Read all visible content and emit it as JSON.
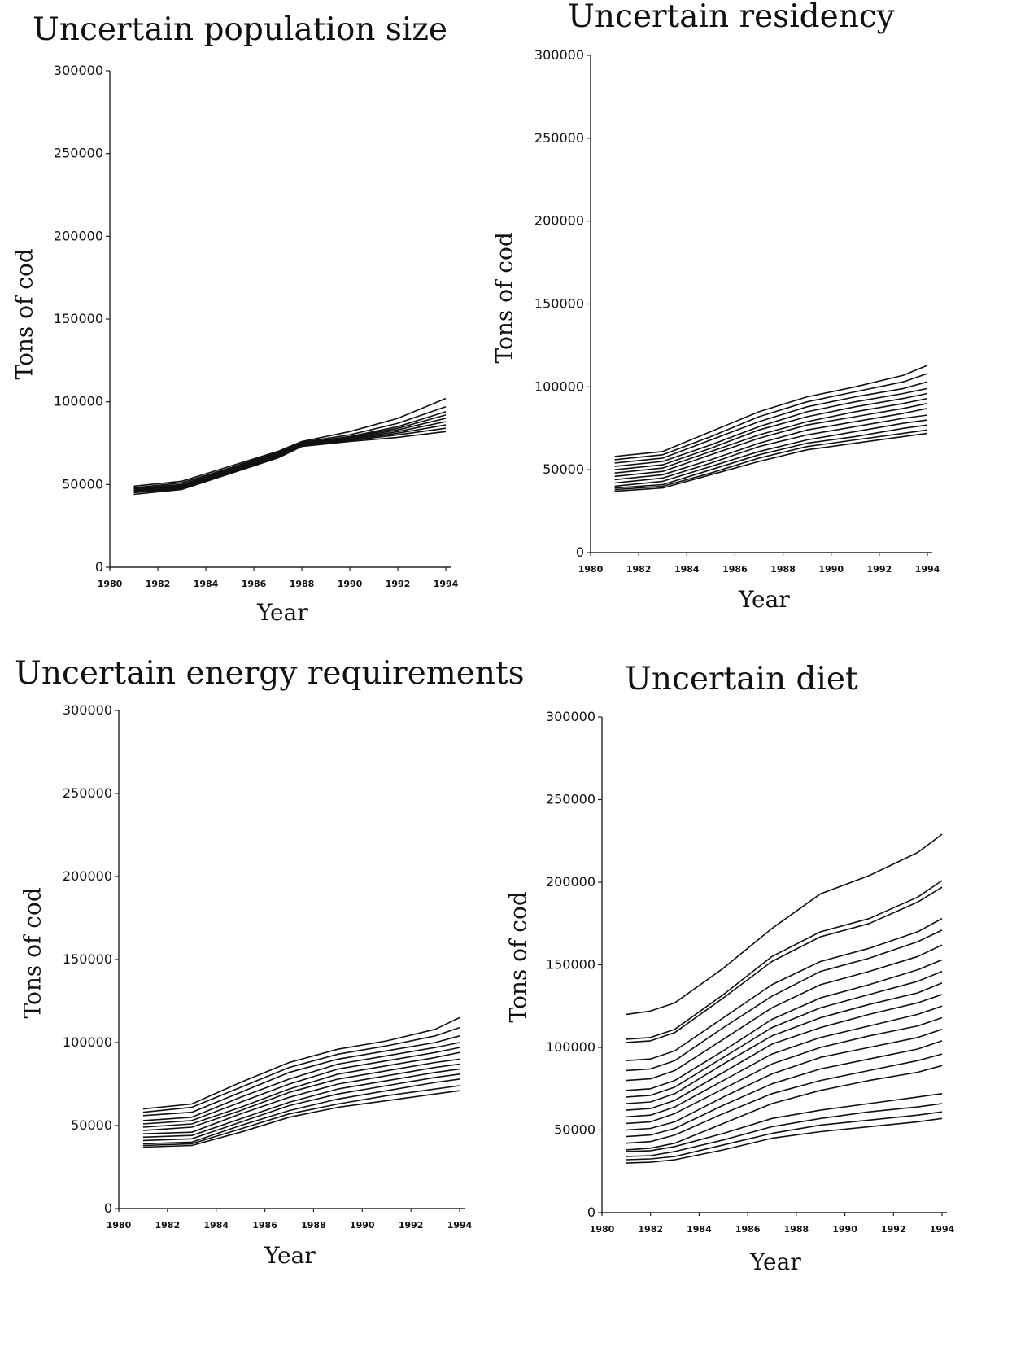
{
  "chart_data": [
    {
      "type": "line",
      "title": "Uncertain population size",
      "xlabel": "Year",
      "ylabel": "Tons of cod",
      "xlim": [
        1980,
        1994
      ],
      "ylim": [
        0,
        300000
      ],
      "x_ticks": [
        "1980",
        "1982",
        "1984",
        "1986",
        "1988",
        "1990",
        "1992",
        "1994"
      ],
      "y_ticks": [
        "0",
        "50000",
        "100000",
        "150000",
        "200000",
        "250000",
        "300000"
      ],
      "grid": false,
      "legend": "none",
      "x": [
        1981,
        1983,
        1985,
        1987,
        1988,
        1990,
        1992,
        1994
      ],
      "series": [
        {
          "values": [
            49000,
            52000,
            61000,
            70000,
            76000,
            82000,
            90000,
            102000
          ]
        },
        {
          "values": [
            48000,
            51000,
            60000,
            69500,
            75500,
            80000,
            87000,
            97000
          ]
        },
        {
          "values": [
            47500,
            50000,
            59500,
            69000,
            75000,
            79000,
            85000,
            94000
          ]
        },
        {
          "values": [
            47000,
            49500,
            59000,
            68500,
            74500,
            78500,
            84000,
            92000
          ]
        },
        {
          "values": [
            46500,
            49000,
            58500,
            68000,
            74000,
            78000,
            83000,
            90000
          ]
        },
        {
          "values": [
            46000,
            48500,
            58000,
            67500,
            74000,
            77500,
            82000,
            88000
          ]
        },
        {
          "values": [
            45500,
            48000,
            57500,
            67000,
            73500,
            77000,
            81000,
            86000
          ]
        },
        {
          "values": [
            45000,
            47500,
            57000,
            66500,
            73500,
            76500,
            80000,
            84000
          ]
        },
        {
          "values": [
            44000,
            47000,
            56500,
            66000,
            73000,
            76000,
            78500,
            82000
          ]
        }
      ]
    },
    {
      "type": "line",
      "title": "Uncertain residency",
      "xlabel": "Year",
      "ylabel": "Tons of cod",
      "xlim": [
        1980,
        1994
      ],
      "ylim": [
        0,
        300000
      ],
      "x_ticks": [
        "1980",
        "1982",
        "1984",
        "1986",
        "1988",
        "1990",
        "1992",
        "1994"
      ],
      "y_ticks": [
        "0",
        "50000",
        "100000",
        "150000",
        "200000",
        "250000",
        "300000"
      ],
      "grid": false,
      "legend": "none",
      "x": [
        1981,
        1983,
        1985,
        1987,
        1989,
        1991,
        1993,
        1994
      ],
      "series": [
        {
          "values": [
            58000,
            61000,
            73000,
            85000,
            94000,
            100000,
            107000,
            113000
          ]
        },
        {
          "values": [
            56000,
            59000,
            70000,
            82000,
            91000,
            97000,
            103000,
            108000
          ]
        },
        {
          "values": [
            54000,
            57000,
            68000,
            79000,
            88000,
            94000,
            99000,
            103000
          ]
        },
        {
          "values": [
            52000,
            55000,
            65000,
            76000,
            85000,
            91000,
            96000,
            99000
          ]
        },
        {
          "values": [
            50000,
            53000,
            63000,
            74000,
            82000,
            88000,
            93000,
            96000
          ]
        },
        {
          "values": [
            48000,
            51000,
            61000,
            71000,
            79000,
            85000,
            90000,
            93000
          ]
        },
        {
          "values": [
            46000,
            49000,
            59000,
            69000,
            77000,
            82000,
            87000,
            90000
          ]
        },
        {
          "values": [
            44000,
            47000,
            56000,
            66000,
            74000,
            79000,
            84000,
            87000
          ]
        },
        {
          "values": [
            42000,
            45000,
            54000,
            64000,
            71000,
            76000,
            81000,
            83000
          ]
        },
        {
          "values": [
            40000,
            43000,
            52000,
            61000,
            68000,
            73000,
            78000,
            80000
          ]
        },
        {
          "values": [
            39000,
            41000,
            50000,
            59000,
            66000,
            70000,
            75000,
            77000
          ]
        },
        {
          "values": [
            38000,
            40000,
            48000,
            57000,
            64000,
            68000,
            72000,
            74000
          ]
        },
        {
          "values": [
            37000,
            39000,
            47000,
            55000,
            62000,
            66000,
            70000,
            72000
          ]
        }
      ]
    },
    {
      "type": "line",
      "title": "Uncertain energy requirements",
      "xlabel": "Year",
      "ylabel": "Tons of cod",
      "xlim": [
        1980,
        1994
      ],
      "ylim": [
        0,
        300000
      ],
      "x_ticks": [
        "1980",
        "1982",
        "1984",
        "1986",
        "1988",
        "1990",
        "1992",
        "1994"
      ],
      "y_ticks": [
        "0",
        "50000",
        "100000",
        "150000",
        "200000",
        "250000",
        "300000"
      ],
      "grid": false,
      "legend": "none",
      "x": [
        1981,
        1983,
        1985,
        1987,
        1989,
        1991,
        1993,
        1994
      ],
      "series": [
        {
          "values": [
            60000,
            63000,
            76000,
            88000,
            96000,
            101000,
            108000,
            115000
          ]
        },
        {
          "values": [
            58000,
            61000,
            73000,
            85000,
            93000,
            98000,
            104000,
            109000
          ]
        },
        {
          "values": [
            56000,
            58000,
            70000,
            82000,
            90000,
            95000,
            100000,
            104000
          ]
        },
        {
          "values": [
            53000,
            55000,
            67000,
            78000,
            87000,
            92000,
            97000,
            100000
          ]
        },
        {
          "values": [
            51000,
            53000,
            64000,
            75000,
            84000,
            89000,
            94000,
            97000
          ]
        },
        {
          "values": [
            49000,
            51000,
            61000,
            72000,
            81000,
            86000,
            91000,
            94000
          ]
        },
        {
          "values": [
            47000,
            49000,
            59000,
            70000,
            78000,
            83000,
            88000,
            90000
          ]
        },
        {
          "values": [
            45000,
            46000,
            57000,
            67000,
            75000,
            80000,
            85000,
            87000
          ]
        },
        {
          "values": [
            43000,
            44000,
            54000,
            64000,
            72000,
            77000,
            82000,
            84000
          ]
        },
        {
          "values": [
            41000,
            42000,
            52000,
            62000,
            69000,
            74000,
            79000,
            81000
          ]
        },
        {
          "values": [
            39000,
            40000,
            50000,
            59000,
            66000,
            71000,
            76000,
            78000
          ]
        },
        {
          "values": [
            38000,
            39000,
            48000,
            57000,
            63000,
            68000,
            72000,
            74000
          ]
        },
        {
          "values": [
            37000,
            38000,
            46000,
            55000,
            61000,
            65000,
            69000,
            71000
          ]
        }
      ]
    },
    {
      "type": "line",
      "title": "Uncertain diet",
      "xlabel": "Year",
      "ylabel": "Tons of cod",
      "xlim": [
        1980,
        1994
      ],
      "ylim": [
        0,
        300000
      ],
      "x_ticks": [
        "1980",
        "1982",
        "1984",
        "1986",
        "1988",
        "1990",
        "1992",
        "1994"
      ],
      "y_ticks": [
        "0",
        "50000",
        "100000",
        "150000",
        "200000",
        "250000",
        "300000"
      ],
      "grid": false,
      "legend": "none",
      "x": [
        1981,
        1982,
        1983,
        1985,
        1987,
        1989,
        1991,
        1993,
        1994
      ],
      "series": [
        {
          "values": [
            120000,
            122000,
            127000,
            148000,
            172000,
            193000,
            204000,
            218000,
            229000
          ]
        },
        {
          "values": [
            105000,
            106000,
            111000,
            132000,
            155000,
            170000,
            178000,
            191000,
            201000
          ]
        },
        {
          "values": [
            103000,
            104000,
            109000,
            130000,
            152000,
            167000,
            175000,
            188000,
            197000
          ]
        },
        {
          "values": [
            92000,
            93000,
            98000,
            118000,
            138000,
            152000,
            160000,
            170000,
            178000
          ]
        },
        {
          "values": [
            86000,
            87000,
            92000,
            112000,
            131000,
            146000,
            154000,
            164000,
            171000
          ]
        },
        {
          "values": [
            80000,
            81000,
            86000,
            105000,
            124000,
            138000,
            146000,
            155000,
            162000
          ]
        },
        {
          "values": [
            74000,
            75000,
            80000,
            98000,
            117000,
            130000,
            138000,
            147000,
            153000
          ]
        },
        {
          "values": [
            70000,
            71000,
            76000,
            94000,
            112000,
            124000,
            132000,
            140000,
            146000
          ]
        },
        {
          "values": [
            66000,
            67000,
            72000,
            90000,
            107000,
            118000,
            126000,
            133000,
            139000
          ]
        },
        {
          "values": [
            62000,
            63000,
            68000,
            85000,
            102000,
            112000,
            120000,
            127000,
            132000
          ]
        },
        {
          "values": [
            58000,
            59000,
            64000,
            80000,
            96000,
            106000,
            113000,
            120000,
            125000
          ]
        },
        {
          "values": [
            54000,
            55000,
            60000,
            75000,
            90000,
            100000,
            107000,
            113000,
            118000
          ]
        },
        {
          "values": [
            50000,
            51000,
            55000,
            70000,
            84000,
            94000,
            100000,
            106000,
            111000
          ]
        },
        {
          "values": [
            46000,
            47000,
            51000,
            65000,
            78000,
            87000,
            93000,
            99000,
            104000
          ]
        },
        {
          "values": [
            42000,
            43000,
            47000,
            60000,
            72000,
            80000,
            86000,
            92000,
            96000
          ]
        },
        {
          "values": [
            38000,
            39000,
            42000,
            54000,
            66000,
            74000,
            80000,
            85000,
            89000
          ]
        },
        {
          "values": [
            37000,
            37500,
            40000,
            48000,
            57000,
            62000,
            66000,
            70000,
            72000
          ]
        },
        {
          "values": [
            34000,
            34500,
            37000,
            44000,
            52000,
            57000,
            61000,
            64000,
            66000
          ]
        },
        {
          "values": [
            32000,
            32500,
            34000,
            41000,
            48000,
            53000,
            56000,
            59000,
            61000
          ]
        },
        {
          "values": [
            30000,
            30500,
            32000,
            38000,
            45000,
            49000,
            52000,
            55000,
            57000
          ]
        }
      ]
    }
  ]
}
